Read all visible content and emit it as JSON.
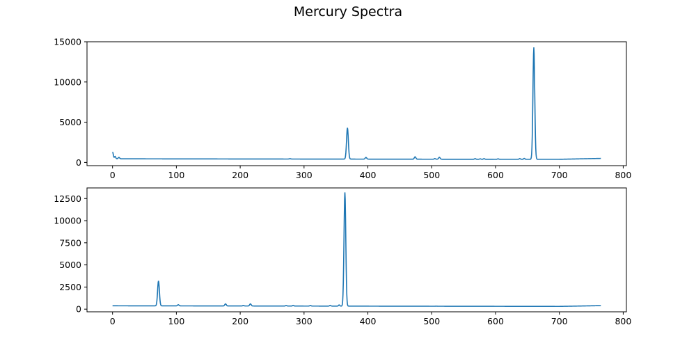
{
  "figure_title": "Mercury Spectra",
  "line_color": "#1f77b4",
  "chart_data": [
    {
      "type": "line",
      "title": "",
      "xlabel": "",
      "ylabel": "",
      "xlim": [
        -40,
        805
      ],
      "ylim": [
        -400,
        15000
      ],
      "xticks": [
        0,
        100,
        200,
        300,
        400,
        500,
        600,
        700,
        800
      ],
      "yticks": [
        0,
        5000,
        10000,
        15000
      ],
      "grid": false,
      "legend": "none",
      "x_range": [
        0,
        765
      ],
      "baseline": [
        [
          0,
          450
        ],
        [
          100,
          440
        ],
        [
          200,
          430
        ],
        [
          300,
          420
        ],
        [
          400,
          410
        ],
        [
          500,
          400
        ],
        [
          600,
          390
        ],
        [
          700,
          390
        ],
        [
          765,
          500
        ]
      ],
      "peaks": [
        {
          "x": 0,
          "height": 1300,
          "width": 1.2
        },
        {
          "x": 4,
          "height": 750,
          "width": 1.0
        },
        {
          "x": 10,
          "height": 620,
          "width": 1.2
        },
        {
          "x": 278,
          "height": 460,
          "width": 1.2
        },
        {
          "x": 368,
          "height": 4300,
          "width": 1.4
        },
        {
          "x": 397,
          "height": 620,
          "width": 1.2
        },
        {
          "x": 474,
          "height": 700,
          "width": 1.2
        },
        {
          "x": 505,
          "height": 480,
          "width": 1.0
        },
        {
          "x": 512,
          "height": 640,
          "width": 1.2
        },
        {
          "x": 568,
          "height": 470,
          "width": 1.0
        },
        {
          "x": 576,
          "height": 450,
          "width": 1.0
        },
        {
          "x": 582,
          "height": 470,
          "width": 1.0
        },
        {
          "x": 604,
          "height": 450,
          "width": 1.0
        },
        {
          "x": 638,
          "height": 480,
          "width": 1.0
        },
        {
          "x": 645,
          "height": 500,
          "width": 1.0
        },
        {
          "x": 660,
          "height": 14300,
          "width": 1.4
        }
      ]
    },
    {
      "type": "line",
      "title": "",
      "xlabel": "",
      "ylabel": "",
      "xlim": [
        -40,
        805
      ],
      "ylim": [
        -300,
        13700
      ],
      "xticks": [
        0,
        100,
        200,
        300,
        400,
        500,
        600,
        700,
        800
      ],
      "yticks": [
        0,
        2500,
        5000,
        7500,
        10000,
        12500
      ],
      "grid": false,
      "legend": "none",
      "x_range": [
        0,
        765
      ],
      "baseline": [
        [
          0,
          380
        ],
        [
          100,
          370
        ],
        [
          200,
          360
        ],
        [
          300,
          350
        ],
        [
          400,
          340
        ],
        [
          500,
          330
        ],
        [
          600,
          320
        ],
        [
          700,
          310
        ],
        [
          765,
          400
        ]
      ],
      "peaks": [
        {
          "x": 72,
          "height": 3200,
          "width": 1.4
        },
        {
          "x": 103,
          "height": 500,
          "width": 1.2
        },
        {
          "x": 177,
          "height": 600,
          "width": 1.2
        },
        {
          "x": 205,
          "height": 420,
          "width": 1.0
        },
        {
          "x": 216,
          "height": 600,
          "width": 1.2
        },
        {
          "x": 272,
          "height": 420,
          "width": 1.0
        },
        {
          "x": 283,
          "height": 430,
          "width": 1.0
        },
        {
          "x": 310,
          "height": 420,
          "width": 1.0
        },
        {
          "x": 341,
          "height": 430,
          "width": 1.0
        },
        {
          "x": 355,
          "height": 480,
          "width": 1.0
        },
        {
          "x": 364,
          "height": 13200,
          "width": 1.4
        },
        {
          "x": 507,
          "height": 340,
          "width": 1.0
        }
      ]
    }
  ]
}
